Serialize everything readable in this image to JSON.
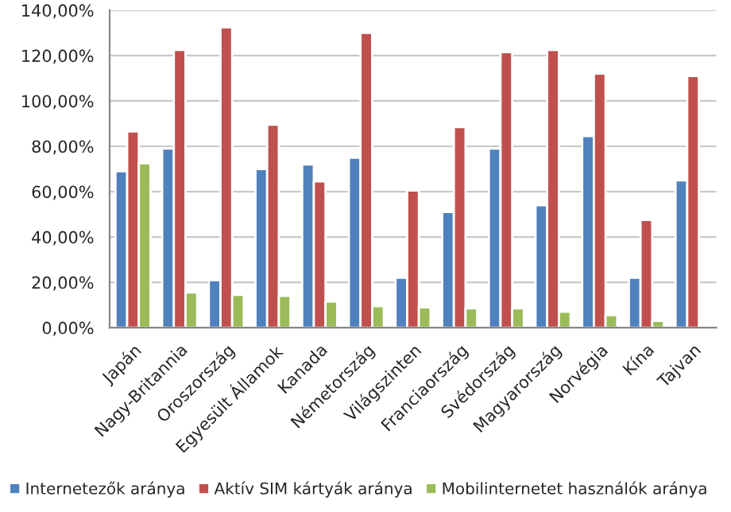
{
  "chart_data": {
    "type": "bar",
    "categories": [
      "Japán",
      "Nagy-Britannia",
      "Oroszország",
      "Egyesült Államok",
      "Kanada",
      "Németország",
      "Világszinten",
      "Franciaország",
      "Svédország",
      "Magyarország",
      "Norvégia",
      "Kína",
      "Tajvan"
    ],
    "series": [
      {
        "name": "Internetezők aránya",
        "color": "#4f81bd",
        "values": [
          69,
          79,
          21,
          70,
          72,
          75,
          22,
          51,
          79,
          54,
          84.5,
          22,
          65
        ]
      },
      {
        "name": "Aktív SIM kártyák aránya",
        "color": "#c0504d",
        "values": [
          86.5,
          122.5,
          132.5,
          89.5,
          64.5,
          130,
          60.5,
          88.5,
          121.5,
          122.5,
          112,
          47.5,
          111
        ]
      },
      {
        "name": "Mobilinternetet használók aránya",
        "color": "#9bbb59",
        "values": [
          72.5,
          15.5,
          14.5,
          14,
          11.5,
          9.5,
          9,
          8.5,
          8.5,
          7,
          5.5,
          3,
          null
        ]
      }
    ],
    "ylim": [
      0,
      140
    ],
    "yticks": [
      {
        "value": 0,
        "label": "0,00%"
      },
      {
        "value": 20,
        "label": "20,00%"
      },
      {
        "value": 40,
        "label": "40,00%"
      },
      {
        "value": 60,
        "label": "60,00%"
      },
      {
        "value": 80,
        "label": "80,00%"
      },
      {
        "value": 100,
        "label": "100,00%"
      },
      {
        "value": 120,
        "label": "120,00%"
      },
      {
        "value": 140,
        "label": "140,00%"
      }
    ],
    "grid": "y",
    "legend": "bottom"
  }
}
